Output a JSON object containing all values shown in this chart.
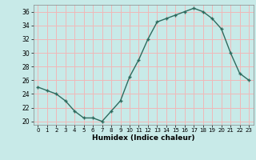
{
  "x": [
    0,
    1,
    2,
    3,
    4,
    5,
    6,
    7,
    8,
    9,
    10,
    11,
    12,
    13,
    14,
    15,
    16,
    17,
    18,
    19,
    20,
    21,
    22,
    23
  ],
  "y": [
    25,
    24.5,
    24,
    23,
    21.5,
    20.5,
    20.5,
    20,
    21.5,
    23,
    26.5,
    29,
    32,
    34.5,
    35,
    35.5,
    36,
    36.5,
    36,
    35,
    33.5,
    30,
    27,
    26
  ],
  "line_color": "#2d6b5e",
  "marker_color": "#2d6b5e",
  "bg_color": "#c8eae8",
  "grid_color": "#f0b8b8",
  "xlabel": "Humidex (Indice chaleur)",
  "ylim": [
    19.5,
    37
  ],
  "xlim": [
    -0.5,
    23.5
  ],
  "yticks": [
    20,
    22,
    24,
    26,
    28,
    30,
    32,
    34,
    36
  ],
  "xticks": [
    0,
    1,
    2,
    3,
    4,
    5,
    6,
    7,
    8,
    9,
    10,
    11,
    12,
    13,
    14,
    15,
    16,
    17,
    18,
    19,
    20,
    21,
    22,
    23
  ]
}
